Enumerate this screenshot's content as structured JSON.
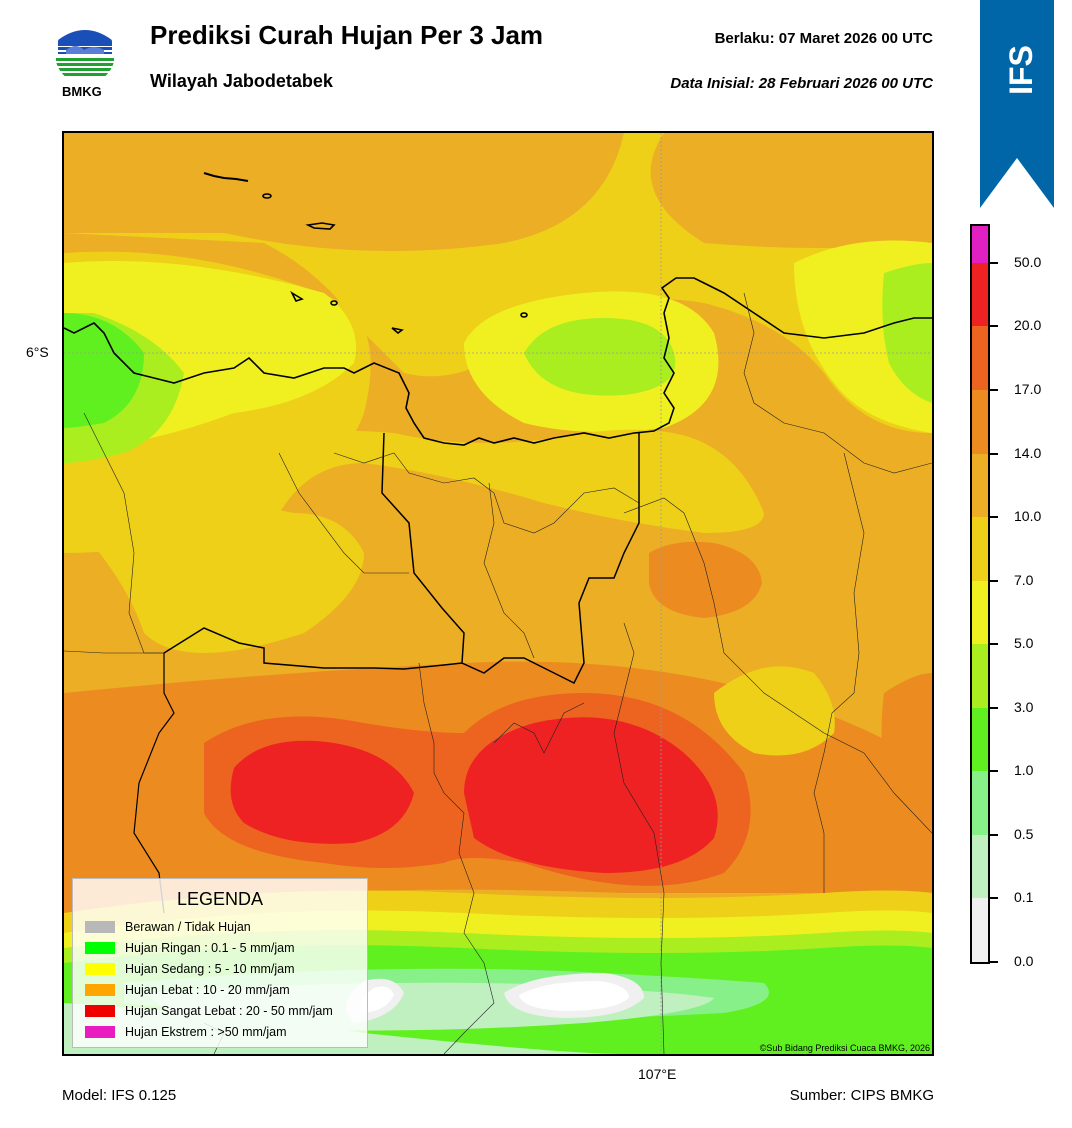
{
  "header": {
    "title": "Prediksi Curah Hujan Per 3 Jam",
    "subtitle": "Wilayah Jabodetabek",
    "valid_time": "Berlaku:  07 Maret 2026 00 UTC",
    "initial_time": "Data Inisial:  28 Februari 2026 00 UTC",
    "logo_text": "BMKG"
  },
  "badge": {
    "label": "IFS",
    "color": "#0066a8"
  },
  "map": {
    "lat_label": "6°S",
    "lon_label": "107°E",
    "copyright": "©Sub Bidang Prediksi Cuaca BMKG, 2026"
  },
  "legend": {
    "title": "LEGENDA",
    "items": [
      {
        "label": "Berawan / Tidak Hujan",
        "color": "#b8b8b8"
      },
      {
        "label": "Hujan Ringan : 0.1 - 5 mm/jam",
        "color": "#00ff00"
      },
      {
        "label": "Hujan Sedang : 5 - 10 mm/jam",
        "color": "#ffff00"
      },
      {
        "label": "Hujan Lebat : 10 - 20 mm/jam",
        "color": "#ffa500"
      },
      {
        "label": "Hujan Sangat Lebat : 20 - 50 mm/jam",
        "color": "#ee0000"
      },
      {
        "label": "Hujan Ekstrem : >50 mm/jam",
        "color": "#e81cc0"
      }
    ]
  },
  "colorbar": {
    "ticks": [
      "50.0",
      "20.0",
      "17.0",
      "14.0",
      "10.0",
      "7.0",
      "5.0",
      "3.0",
      "1.0",
      "0.5",
      "0.1",
      "0.0"
    ],
    "colors_top_to_bottom": [
      "#e020c0",
      "#ee2222",
      "#ec6420",
      "#ec8c20",
      "#ecae24",
      "#eed018",
      "#f0f020",
      "#aaee20",
      "#60f020",
      "#88f088",
      "#c0f0c0",
      "#f0f0f0"
    ]
  },
  "footer": {
    "model": "Model: IFS 0.125",
    "source": "Sumber: CIPS BMKG"
  }
}
